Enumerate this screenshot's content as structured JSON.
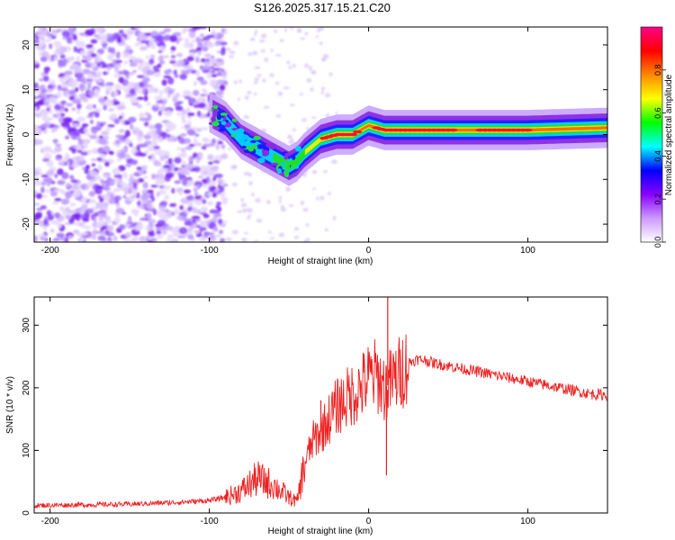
{
  "title": "S126.2025.317.15.21.C20",
  "chart_data": [
    {
      "type": "heatmap",
      "title": "S126.2025.317.15.21.C20",
      "xlabel": "Height of straight line (km)",
      "ylabel": "Frequency (Hz)",
      "xlim": [
        -210,
        150
      ],
      "ylim": [
        -24,
        24
      ],
      "xticks": [
        -200,
        -100,
        0,
        100
      ],
      "yticks": [
        -20,
        -10,
        0,
        10,
        20
      ],
      "colorbar": {
        "label": "Normalized spectral amplitude",
        "range": [
          0,
          1
        ],
        "ticks": [
          "0.0",
          "0.2",
          "0.4",
          "0.6",
          "0.8"
        ],
        "colors": [
          "#ffffff",
          "#cc99ff",
          "#8800ff",
          "#0000ff",
          "#00ffff",
          "#00ff00",
          "#ffff00",
          "#ff8800",
          "#ff0000",
          "#ff0088"
        ]
      },
      "ridge": {
        "x": [
          -100,
          -90,
          -80,
          -70,
          -60,
          -50,
          -45,
          -40,
          -30,
          -20,
          -10,
          -5,
          0,
          10,
          50,
          100,
          150
        ],
        "y": [
          5,
          3,
          -1,
          -3,
          -5,
          -7,
          -6,
          -4,
          -1,
          0,
          0,
          1,
          2,
          1,
          1,
          1,
          1.5
        ]
      }
    },
    {
      "type": "line",
      "xlabel": "Height of straight line (km)",
      "ylabel": "SNR (10 * v/v)",
      "xlim": [
        -210,
        150
      ],
      "ylim": [
        0,
        345
      ],
      "xticks": [
        -200,
        -100,
        0,
        100
      ],
      "yticks": [
        0,
        100,
        200,
        300
      ],
      "color": "#ee2020",
      "x": [
        -210,
        -180,
        -150,
        -120,
        -100,
        -90,
        -80,
        -75,
        -70,
        -65,
        -60,
        -55,
        -50,
        -45,
        -40,
        -35,
        -30,
        -25,
        -20,
        -15,
        -10,
        -5,
        0,
        5,
        10,
        15,
        20,
        25,
        30,
        35,
        40,
        50,
        60,
        70,
        80,
        90,
        100,
        110,
        120,
        130,
        140,
        150
      ],
      "y": [
        12,
        13,
        14,
        17,
        20,
        25,
        35,
        45,
        55,
        50,
        45,
        35,
        25,
        18,
        80,
        115,
        130,
        150,
        170,
        180,
        190,
        200,
        215,
        220,
        200,
        210,
        225,
        240,
        245,
        245,
        240,
        235,
        230,
        225,
        220,
        215,
        210,
        205,
        200,
        195,
        190,
        188
      ]
    }
  ]
}
